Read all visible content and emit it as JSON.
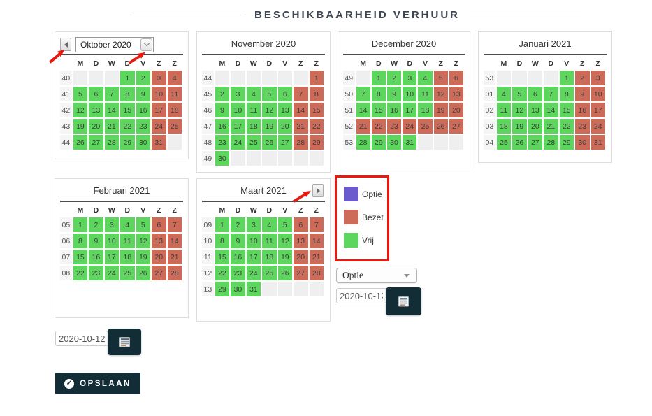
{
  "title": "BESCHIKBAARHEID VERHUUR",
  "day_headers": [
    "M",
    "D",
    "W",
    "D",
    "V",
    "Z",
    "Z"
  ],
  "calendars": [
    {
      "title": "Oktober 2020",
      "weeks": [
        {
          "wk": "40",
          "days": [
            "",
            "",
            "",
            "1:v",
            "2:v",
            "3:b",
            "4:b"
          ]
        },
        {
          "wk": "41",
          "days": [
            "5:v",
            "6:v",
            "7:v",
            "8:v",
            "9:v",
            "10:b",
            "11:b"
          ]
        },
        {
          "wk": "42",
          "days": [
            "12:v",
            "13:v",
            "14:v",
            "15:v",
            "16:v",
            "17:b",
            "18:b"
          ]
        },
        {
          "wk": "43",
          "days": [
            "19:v",
            "20:v",
            "21:v",
            "22:v",
            "23:v",
            "24:b",
            "25:b"
          ]
        },
        {
          "wk": "44",
          "days": [
            "26:v",
            "27:v",
            "28:v",
            "29:v",
            "30:v",
            "31:b",
            ""
          ]
        }
      ]
    },
    {
      "title": "November 2020",
      "weeks": [
        {
          "wk": "44",
          "days": [
            "",
            "",
            "",
            "",
            "",
            "",
            "1:b"
          ]
        },
        {
          "wk": "45",
          "days": [
            "2:v",
            "3:v",
            "4:v",
            "5:v",
            "6:v",
            "7:b",
            "8:b"
          ]
        },
        {
          "wk": "46",
          "days": [
            "9:v",
            "10:v",
            "11:v",
            "12:v",
            "13:v",
            "14:b",
            "15:b"
          ]
        },
        {
          "wk": "47",
          "days": [
            "16:v",
            "17:v",
            "18:v",
            "19:v",
            "20:v",
            "21:b",
            "22:b"
          ]
        },
        {
          "wk": "48",
          "days": [
            "23:v",
            "24:v",
            "25:v",
            "26:v",
            "27:v",
            "28:b",
            "29:b"
          ]
        },
        {
          "wk": "49",
          "days": [
            "30:v",
            "",
            "",
            "",
            "",
            "",
            ""
          ]
        }
      ]
    },
    {
      "title": "December 2020",
      "weeks": [
        {
          "wk": "49",
          "days": [
            "",
            "1:v",
            "2:v",
            "3:v",
            "4:v",
            "5:b",
            "6:b"
          ]
        },
        {
          "wk": "50",
          "days": [
            "7:v",
            "8:v",
            "9:v",
            "10:v",
            "11:v",
            "12:b",
            "13:b"
          ]
        },
        {
          "wk": "51",
          "days": [
            "14:v",
            "15:v",
            "16:v",
            "17:v",
            "18:v",
            "19:b",
            "20:b"
          ]
        },
        {
          "wk": "52",
          "days": [
            "21:b",
            "22:b",
            "23:b",
            "24:b",
            "25:b",
            "26:b",
            "27:b"
          ]
        },
        {
          "wk": "53",
          "days": [
            "28:v",
            "29:v",
            "30:v",
            "31:v",
            "",
            "",
            ""
          ]
        }
      ]
    },
    {
      "title": "Januari 2021",
      "weeks": [
        {
          "wk": "53",
          "days": [
            "",
            "",
            "",
            "",
            "1:v",
            "2:b",
            "3:b"
          ]
        },
        {
          "wk": "01",
          "days": [
            "4:v",
            "5:v",
            "6:v",
            "7:v",
            "8:v",
            "9:b",
            "10:b"
          ]
        },
        {
          "wk": "02",
          "days": [
            "11:v",
            "12:v",
            "13:v",
            "14:v",
            "15:v",
            "16:b",
            "17:b"
          ]
        },
        {
          "wk": "03",
          "days": [
            "18:v",
            "19:v",
            "20:v",
            "21:v",
            "22:v",
            "23:b",
            "24:b"
          ]
        },
        {
          "wk": "04",
          "days": [
            "25:v",
            "26:v",
            "27:v",
            "28:v",
            "29:v",
            "30:b",
            "31:b"
          ]
        }
      ]
    },
    {
      "title": "Februari 2021",
      "weeks": [
        {
          "wk": "05",
          "days": [
            "1:v",
            "2:v",
            "3:v",
            "4:v",
            "5:v",
            "6:b",
            "7:b"
          ]
        },
        {
          "wk": "06",
          "days": [
            "8:v",
            "9:v",
            "10:v",
            "11:v",
            "12:v",
            "13:b",
            "14:b"
          ]
        },
        {
          "wk": "07",
          "days": [
            "15:v",
            "16:v",
            "17:v",
            "18:v",
            "19:v",
            "20:b",
            "21:b"
          ]
        },
        {
          "wk": "08",
          "days": [
            "22:v",
            "23:v",
            "24:v",
            "25:v",
            "26:v",
            "27:b",
            "28:b"
          ]
        }
      ]
    },
    {
      "title": "Maart 2021",
      "weeks": [
        {
          "wk": "09",
          "days": [
            "1:v",
            "2:v",
            "3:v",
            "4:v",
            "5:v",
            "6:b",
            "7:b"
          ]
        },
        {
          "wk": "10",
          "days": [
            "8:v",
            "9:v",
            "10:v",
            "11:v",
            "12:v",
            "13:b",
            "14:b"
          ]
        },
        {
          "wk": "11",
          "days": [
            "15:v",
            "16:v",
            "17:v",
            "18:v",
            "19:v",
            "20:b",
            "21:b"
          ]
        },
        {
          "wk": "12",
          "days": [
            "22:v",
            "23:v",
            "24:v",
            "25:v",
            "26:v",
            "27:b",
            "28:b"
          ]
        },
        {
          "wk": "13",
          "days": [
            "29:v",
            "30:v",
            "31:v",
            "",
            "",
            "",
            ""
          ]
        }
      ]
    }
  ],
  "legend": {
    "items": [
      {
        "label": "Optie",
        "color": "#6a5acd"
      },
      {
        "label": "Bezet",
        "color": "#cd6a58"
      },
      {
        "label": "Vrij",
        "color": "#5cd65c"
      }
    ]
  },
  "controls": {
    "month_select_value": "Oktober 2020",
    "status_select_value": "Optie",
    "date_right": "2020-10-12",
    "date_bottom": "2020-10-12",
    "save_label": "OPSLAAN"
  },
  "colors": {
    "vrij": "#5cd65c",
    "bezet": "#cd6a58",
    "optie": "#6a5acd",
    "dark_button": "#132d36",
    "annotation": "#e9190f"
  }
}
